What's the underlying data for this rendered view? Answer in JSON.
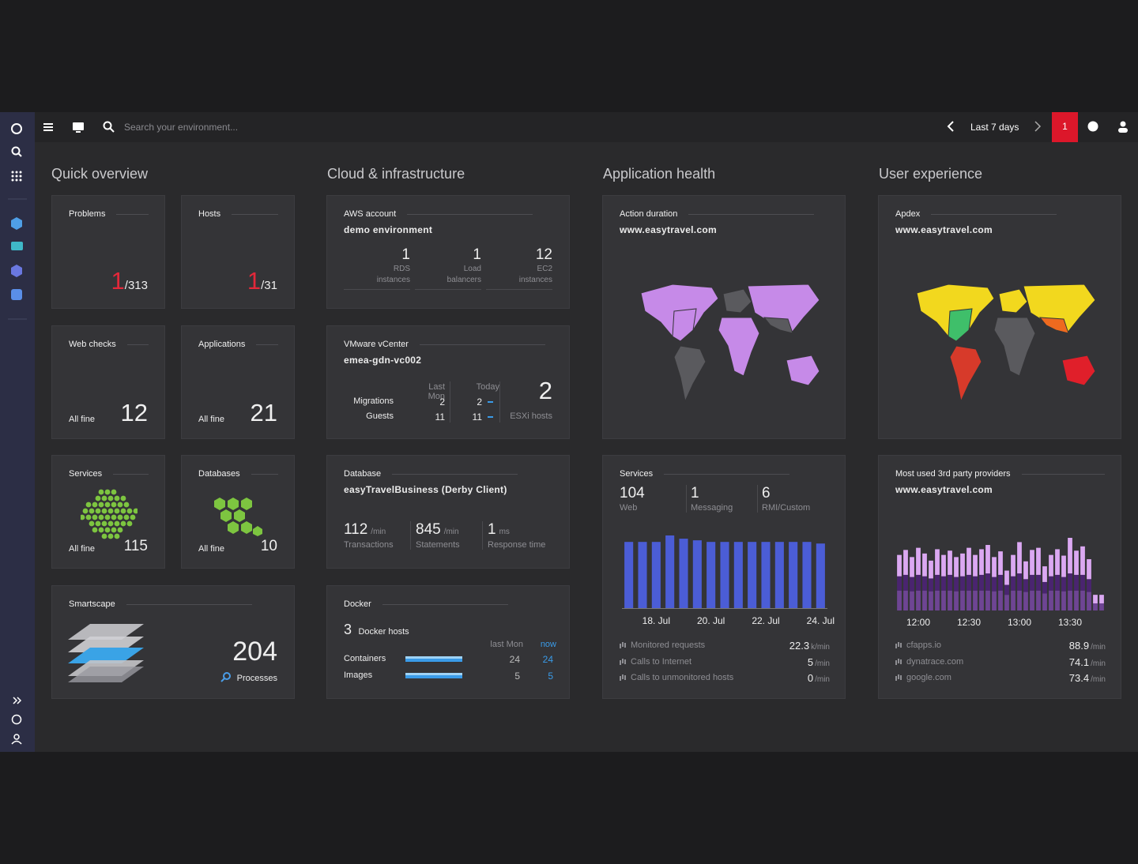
{
  "header": {
    "search_placeholder": "Search your environment...",
    "timeframe": "Last 7 days",
    "problems_count": 1
  },
  "sections": [
    "Quick overview",
    "Cloud & infrastructure",
    "Application health",
    "User experience"
  ],
  "quick": {
    "problems": {
      "title": "Problems",
      "value": 1,
      "total": "/313"
    },
    "hosts": {
      "title": "Hosts",
      "value": 1,
      "total": "/31"
    },
    "web_checks": {
      "title": "Web checks",
      "status": "All fine",
      "value": 12
    },
    "applications": {
      "title": "Applications",
      "status": "All fine",
      "value": 21
    },
    "services": {
      "title": "Services",
      "status": "All fine",
      "value": 115
    },
    "databases": {
      "title": "Databases",
      "status": "All fine",
      "value": 10
    },
    "smartscape": {
      "title": "Smartscape",
      "value": 204,
      "label": "Processes"
    }
  },
  "cloud": {
    "aws": {
      "title": "AWS account",
      "name": "demo environment",
      "metrics": [
        {
          "value": 1,
          "label": "RDS instances"
        },
        {
          "value": 1,
          "label": "Load balancers"
        },
        {
          "value": 12,
          "label": "EC2 instances"
        }
      ]
    },
    "vmware": {
      "title": "VMware vCenter",
      "name": "emea-gdn-vc002",
      "columns": [
        "Last Mon",
        "Today"
      ],
      "rows": [
        {
          "label": "Migrations",
          "values": [
            2,
            2
          ]
        },
        {
          "label": "Guests",
          "values": [
            11,
            11
          ]
        }
      ],
      "hosts": 2,
      "hosts_label": "ESXi hosts"
    },
    "database": {
      "title": "Database",
      "name": "easyTravelBusiness (Derby Client)",
      "metrics": [
        {
          "value": 112,
          "unit": "/min",
          "label": "Transactions"
        },
        {
          "value": 845,
          "unit": "/min",
          "label": "Statements"
        },
        {
          "value": 1,
          "unit": "ms",
          "label": "Response time"
        }
      ]
    },
    "docker": {
      "title": "Docker",
      "count": 3,
      "count_label": "Docker hosts",
      "columns": [
        "last Mon",
        "now"
      ],
      "rows": [
        {
          "label": "Containers",
          "values": [
            24,
            24
          ]
        },
        {
          "label": "Images",
          "values": [
            5,
            5
          ]
        }
      ]
    }
  },
  "app": {
    "action_duration": {
      "title": "Action duration",
      "name": "www.easytravel.com"
    },
    "services": {
      "title": "Services",
      "metrics": [
        {
          "value": 104,
          "label": "Web"
        },
        {
          "value": 1,
          "label": "Messaging"
        },
        {
          "value": 6,
          "label": "RMI/Custom"
        }
      ],
      "chart_data": {
        "type": "bar",
        "color": "#4b5dd6",
        "categories": [
          null,
          null,
          "18. Jul",
          null,
          null,
          null,
          "20. Jul",
          null,
          null,
          null,
          "22. Jul",
          null,
          null,
          null,
          "24. Jul"
        ],
        "values": [
          82,
          82,
          82,
          90,
          86,
          84,
          82,
          82,
          82,
          82,
          82,
          82,
          82,
          82,
          80
        ]
      },
      "legend": [
        {
          "label": "Monitored requests",
          "value": 22.3,
          "unit": "k/min"
        },
        {
          "label": "Calls to Internet",
          "value": 5,
          "unit": "/min"
        },
        {
          "label": "Calls to unmonitored hosts",
          "value": 0,
          "unit": "/min"
        }
      ]
    }
  },
  "ux": {
    "apdex": {
      "title": "Apdex",
      "name": "www.easytravel.com"
    },
    "providers": {
      "title": "Most used 3rd party providers",
      "name": "www.easytravel.com",
      "chart_data": {
        "type": "stacked_bar",
        "categories": [
          null,
          null,
          null,
          "12:00",
          null,
          null,
          null,
          null,
          null,
          null,
          null,
          "12:30",
          null,
          null,
          null,
          null,
          null,
          null,
          null,
          "13:00",
          null,
          null,
          null,
          null,
          null,
          null,
          null,
          "13:30",
          null,
          null,
          null,
          null,
          null
        ],
        "series": [
          {
            "name": "google.com",
            "color": "#6e4593",
            "values": [
              28,
              28,
              27,
              28,
              28,
              27,
              28,
              28,
              28,
              27,
              28,
              28,
              28,
              28,
              28,
              27,
              28,
              22,
              28,
              28,
              26,
              28,
              28,
              24,
              28,
              28,
              27,
              28,
              28,
              28,
              26,
              10,
              10
            ]
          },
          {
            "name": "dynatrace.com",
            "color": "#4a2470",
            "values": [
              20,
              22,
              20,
              22,
              20,
              18,
              22,
              20,
              22,
              20,
              20,
              22,
              20,
              22,
              24,
              20,
              22,
              14,
              20,
              24,
              18,
              22,
              22,
              16,
              20,
              22,
              20,
              24,
              22,
              22,
              18,
              0,
              0
            ]
          },
          {
            "name": "cfapps.io",
            "color": "#dba8f2",
            "values": [
              30,
              35,
              28,
              38,
              32,
              25,
              36,
              30,
              34,
              28,
              32,
              38,
              30,
              36,
              40,
              28,
              33,
              20,
              30,
              44,
              25,
              35,
              38,
              22,
              30,
              36,
              30,
              50,
              34,
              40,
              28,
              12,
              12
            ]
          }
        ]
      },
      "legend": [
        {
          "label": "cfapps.io",
          "value": 88.9,
          "unit": "/min"
        },
        {
          "label": "dynatrace.com",
          "value": 74.1,
          "unit": "/min"
        },
        {
          "label": "google.com",
          "value": 73.4,
          "unit": "/min"
        }
      ]
    }
  }
}
